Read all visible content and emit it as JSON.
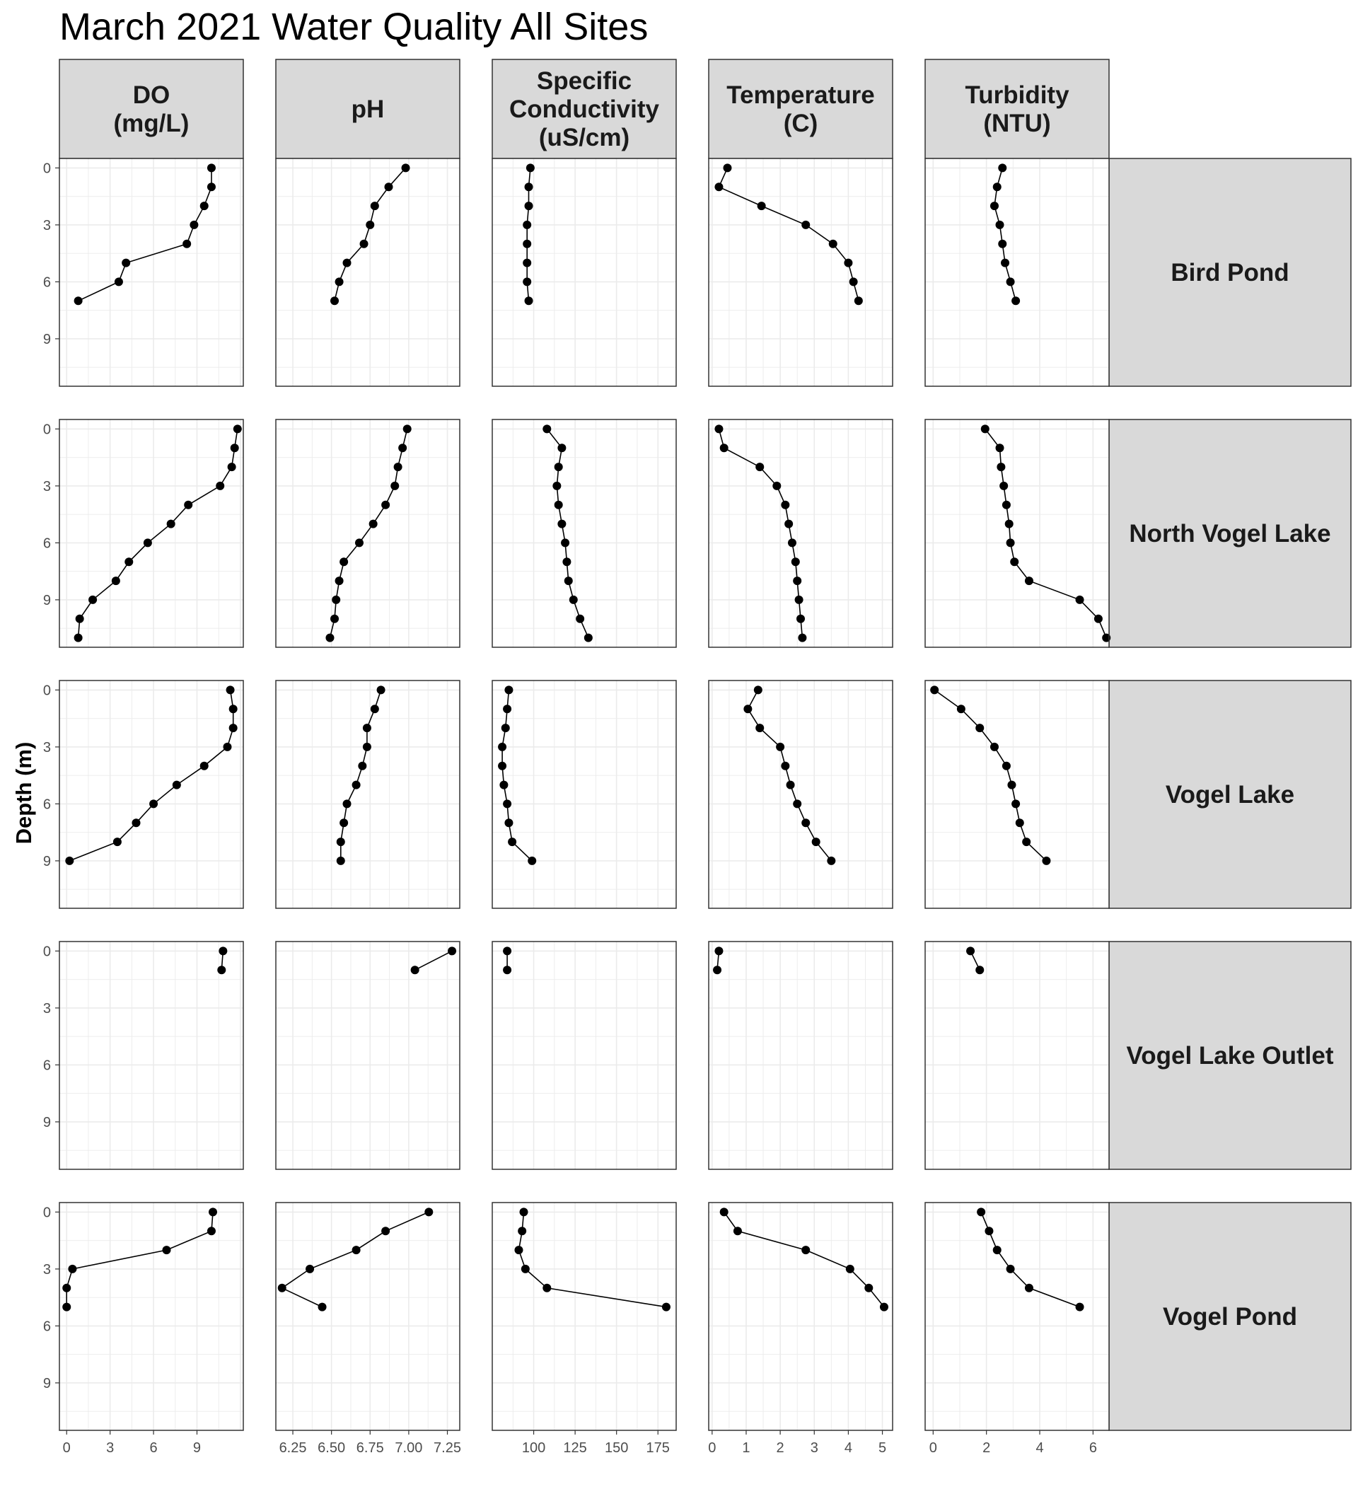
{
  "chart_data": {
    "type": "line",
    "title": "March 2021 Water Quality All Sites",
    "ylabel": "Depth (m)",
    "y_reversed": true,
    "ylim": [
      -0.5,
      11.5
    ],
    "yticks": [
      0,
      3,
      6,
      9
    ],
    "grid": true,
    "columns": [
      {
        "name": "DO\n(mg/L)",
        "xlim": [
          -0.5,
          12.2
        ],
        "xticks": [
          0,
          3,
          6,
          9
        ]
      },
      {
        "name": "pH",
        "xlim": [
          6.14,
          7.33
        ],
        "xticks": [
          6.25,
          6.5,
          6.75,
          7.0,
          7.25
        ],
        "xtick_labels": [
          "6.25",
          "6.50",
          "6.75",
          "7.00",
          "7.25"
        ]
      },
      {
        "name": "Specific\nConductivity\n(uS/cm)",
        "xlim": [
          75,
          186
        ],
        "xticks": [
          100,
          125,
          150,
          175
        ]
      },
      {
        "name": "Temperature\n(C)",
        "xlim": [
          -0.1,
          5.3
        ],
        "xticks": [
          0,
          1,
          2,
          3,
          4,
          5
        ]
      },
      {
        "name": "Turbidity\n(NTU)",
        "xlim": [
          -0.3,
          6.6
        ],
        "xticks": [
          0,
          2,
          4,
          6
        ]
      }
    ],
    "sites": [
      {
        "name": "Bird Pond",
        "series": [
          {
            "column": 0,
            "x": [
              10.0,
              10.0,
              9.5,
              8.8,
              8.3,
              4.1,
              3.6,
              0.8
            ],
            "y": [
              0,
              1,
              2,
              3,
              4,
              5,
              6,
              7
            ]
          },
          {
            "column": 1,
            "x": [
              6.98,
              6.87,
              6.78,
              6.75,
              6.71,
              6.6,
              6.55,
              6.52
            ],
            "y": [
              0,
              1,
              2,
              3,
              4,
              5,
              6,
              7
            ]
          },
          {
            "column": 2,
            "x": [
              98,
              97,
              97,
              96,
              96,
              96,
              96,
              97
            ],
            "y": [
              0,
              1,
              2,
              3,
              4,
              5,
              6,
              7
            ]
          },
          {
            "column": 3,
            "x": [
              0.45,
              0.2,
              1.45,
              2.75,
              3.55,
              4.0,
              4.15,
              4.3
            ],
            "y": [
              0,
              1,
              2,
              3,
              4,
              5,
              6,
              7
            ]
          },
          {
            "column": 4,
            "x": [
              2.6,
              2.4,
              2.3,
              2.5,
              2.6,
              2.7,
              2.9,
              3.1
            ],
            "y": [
              0,
              1,
              2,
              3,
              4,
              5,
              6,
              7
            ]
          }
        ]
      },
      {
        "name": "North Vogel Lake",
        "series": [
          {
            "column": 0,
            "x": [
              11.8,
              11.6,
              11.4,
              10.6,
              8.4,
              7.2,
              5.6,
              4.3,
              3.4,
              1.8,
              0.9,
              0.8
            ],
            "y": [
              0,
              1,
              2,
              3,
              4,
              5,
              6,
              7,
              8,
              9,
              10,
              11
            ]
          },
          {
            "column": 1,
            "x": [
              6.99,
              6.96,
              6.93,
              6.91,
              6.85,
              6.77,
              6.68,
              6.58,
              6.55,
              6.53,
              6.52,
              6.49
            ],
            "y": [
              0,
              1,
              2,
              3,
              4,
              5,
              6,
              7,
              8,
              9,
              10,
              11
            ]
          },
          {
            "column": 2,
            "x": [
              108,
              117,
              115,
              114,
              115,
              117,
              119,
              120,
              121,
              124,
              128,
              133
            ],
            "y": [
              0,
              1,
              2,
              3,
              4,
              5,
              6,
              7,
              8,
              9,
              10,
              11
            ]
          },
          {
            "column": 3,
            "x": [
              0.2,
              0.35,
              1.4,
              1.9,
              2.15,
              2.25,
              2.35,
              2.45,
              2.5,
              2.55,
              2.6,
              2.65
            ],
            "y": [
              0,
              1,
              2,
              3,
              4,
              5,
              6,
              7,
              8,
              9,
              10,
              11
            ]
          },
          {
            "column": 4,
            "x": [
              1.95,
              2.5,
              2.55,
              2.65,
              2.75,
              2.85,
              2.9,
              3.05,
              3.6,
              5.5,
              6.2,
              6.5
            ],
            "y": [
              0,
              1,
              2,
              3,
              4,
              5,
              6,
              7,
              8,
              9,
              10,
              11
            ]
          }
        ]
      },
      {
        "name": "Vogel Lake",
        "series": [
          {
            "column": 0,
            "x": [
              11.3,
              11.5,
              11.5,
              11.1,
              9.5,
              7.6,
              6.0,
              4.8,
              3.5,
              0.2
            ],
            "y": [
              0,
              1,
              2,
              3,
              4,
              5,
              6,
              7,
              8,
              9
            ]
          },
          {
            "column": 1,
            "x": [
              6.82,
              6.78,
              6.73,
              6.73,
              6.7,
              6.66,
              6.6,
              6.58,
              6.56,
              6.56
            ],
            "y": [
              0,
              1,
              2,
              3,
              4,
              5,
              6,
              7,
              8,
              9
            ]
          },
          {
            "column": 2,
            "x": [
              85,
              84,
              83,
              81,
              81,
              82,
              84,
              85,
              87,
              99
            ],
            "y": [
              0,
              1,
              2,
              3,
              4,
              5,
              6,
              7,
              8,
              9
            ]
          },
          {
            "column": 3,
            "x": [
              1.35,
              1.05,
              1.4,
              2.0,
              2.15,
              2.3,
              2.5,
              2.75,
              3.05,
              3.5
            ],
            "y": [
              0,
              1,
              2,
              3,
              4,
              5,
              6,
              7,
              8,
              9
            ]
          },
          {
            "column": 4,
            "x": [
              0.05,
              1.05,
              1.75,
              2.3,
              2.75,
              2.95,
              3.1,
              3.25,
              3.5,
              4.25
            ],
            "y": [
              0,
              1,
              2,
              3,
              4,
              5,
              6,
              7,
              8,
              9
            ]
          }
        ]
      },
      {
        "name": "Vogel Lake Outlet",
        "series": [
          {
            "column": 0,
            "x": [
              10.8,
              10.7
            ],
            "y": [
              0,
              1
            ]
          },
          {
            "column": 1,
            "x": [
              7.28,
              7.04
            ],
            "y": [
              0,
              1
            ]
          },
          {
            "column": 2,
            "x": [
              84,
              84
            ],
            "y": [
              0,
              1
            ]
          },
          {
            "column": 3,
            "x": [
              0.2,
              0.15
            ],
            "y": [
              0,
              1
            ]
          },
          {
            "column": 4,
            "x": [
              1.4,
              1.75
            ],
            "y": [
              0,
              1
            ]
          }
        ]
      },
      {
        "name": "Vogel Pond",
        "series": [
          {
            "column": 0,
            "x": [
              10.1,
              10.0,
              6.9,
              0.4,
              0.0,
              0.0
            ],
            "y": [
              0,
              1,
              2,
              3,
              4,
              5
            ]
          },
          {
            "column": 1,
            "x": [
              7.13,
              6.85,
              6.66,
              6.36,
              6.18,
              6.44
            ],
            "y": [
              0,
              1,
              2,
              3,
              4,
              5
            ]
          },
          {
            "column": 2,
            "x": [
              94,
              93,
              91,
              95,
              108,
              180
            ],
            "y": [
              0,
              1,
              2,
              3,
              4,
              5
            ]
          },
          {
            "column": 3,
            "x": [
              0.35,
              0.75,
              2.75,
              4.05,
              4.6,
              5.05
            ],
            "y": [
              0,
              1,
              2,
              3,
              4,
              5
            ]
          },
          {
            "column": 4,
            "x": [
              1.8,
              2.1,
              2.4,
              2.9,
              3.6,
              5.5
            ],
            "y": [
              0,
              1,
              2,
              3,
              4,
              5
            ]
          }
        ]
      }
    ]
  }
}
